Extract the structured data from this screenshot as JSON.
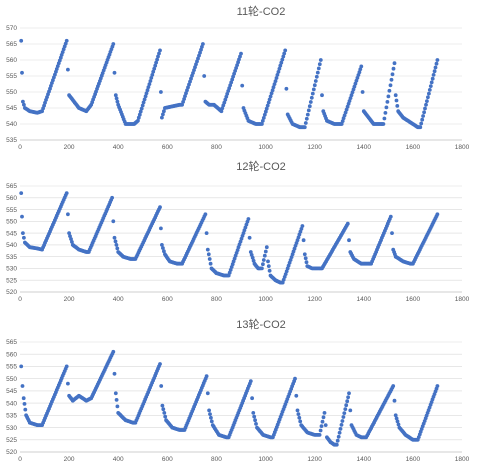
{
  "chart_data": [
    {
      "type": "scatter",
      "title": "11轮-CO2",
      "xlim": [
        0,
        1800
      ],
      "ylim": [
        535,
        570
      ],
      "x_ticks": [
        0,
        200,
        400,
        600,
        800,
        1000,
        1200,
        1400,
        1600,
        1800
      ],
      "y_ticks": [
        535,
        540,
        545,
        550,
        555,
        560,
        565,
        570
      ],
      "grid": true,
      "marker_color": "#4472c4",
      "series": [
        {
          "keypoints": [
            [
              5,
              566
            ],
            [
              8,
              556
            ],
            [
              12,
              547
            ],
            [
              20,
              545
            ],
            [
              40,
              544
            ],
            [
              70,
              543.5
            ],
            [
              90,
              544
            ],
            [
              190,
              566
            ],
            [
              195,
              557
            ],
            [
              200,
              549
            ],
            [
              215,
              547.5
            ],
            [
              240,
              545
            ],
            [
              270,
              544
            ],
            [
              290,
              546
            ],
            [
              380,
              565
            ],
            [
              385,
              556
            ],
            [
              390,
              549
            ],
            [
              400,
              546
            ],
            [
              430,
              540
            ],
            [
              465,
              540
            ],
            [
              480,
              541
            ],
            [
              570,
              563
            ],
            [
              574,
              550
            ],
            [
              578,
              542
            ],
            [
              590,
              545
            ],
            [
              620,
              545.5
            ],
            [
              650,
              546
            ],
            [
              660,
              546
            ],
            [
              745,
              565
            ],
            [
              750,
              555
            ],
            [
              755,
              547
            ],
            [
              770,
              546
            ],
            [
              790,
              546
            ],
            [
              805,
              545
            ],
            [
              820,
              544
            ],
            [
              900,
              562
            ],
            [
              905,
              552
            ],
            [
              910,
              545
            ],
            [
              930,
              541
            ],
            [
              960,
              540
            ],
            [
              980,
              540
            ],
            [
              985,
              540
            ],
            [
              1080,
              563
            ],
            [
              1085,
              551
            ],
            [
              1090,
              543
            ],
            [
              1110,
              540
            ],
            [
              1140,
              539
            ],
            [
              1160,
              539
            ],
            [
              1225,
              560
            ],
            [
              1230,
              549
            ],
            [
              1235,
              544
            ],
            [
              1250,
              541
            ],
            [
              1280,
              540
            ],
            [
              1300,
              540
            ],
            [
              1310,
              540
            ],
            [
              1390,
              558
            ],
            [
              1395,
              550
            ],
            [
              1400,
              544
            ],
            [
              1420,
              542
            ],
            [
              1440,
              540
            ],
            [
              1470,
              540
            ],
            [
              1480,
              540
            ],
            [
              1525,
              559
            ],
            [
              1530,
              549
            ],
            [
              1540,
              544
            ],
            [
              1560,
              542
            ],
            [
              1600,
              540
            ],
            [
              1620,
              539
            ],
            [
              1630,
              539
            ],
            [
              1700,
              560
            ]
          ]
        }
      ]
    },
    {
      "type": "scatter",
      "title": "12轮-CO2",
      "xlim": [
        0,
        1800
      ],
      "ylim": [
        520,
        565
      ],
      "x_ticks": [
        0,
        200,
        400,
        600,
        800,
        1000,
        1200,
        1400,
        1600,
        1800
      ],
      "y_ticks": [
        520,
        525,
        530,
        535,
        540,
        545,
        550,
        555,
        560,
        565
      ],
      "grid": true,
      "marker_color": "#4472c4",
      "series": [
        {
          "keypoints": [
            [
              5,
              562
            ],
            [
              8,
              552
            ],
            [
              12,
              545
            ],
            [
              20,
              541
            ],
            [
              40,
              539
            ],
            [
              70,
              538.5
            ],
            [
              90,
              538
            ],
            [
              190,
              562
            ],
            [
              195,
              553
            ],
            [
              200,
              545
            ],
            [
              215,
              540
            ],
            [
              240,
              538
            ],
            [
              270,
              537
            ],
            [
              280,
              537
            ],
            [
              375,
              560
            ],
            [
              380,
              550
            ],
            [
              385,
              543
            ],
            [
              400,
              537
            ],
            [
              420,
              535
            ],
            [
              450,
              534
            ],
            [
              470,
              534
            ],
            [
              570,
              556
            ],
            [
              574,
              547
            ],
            [
              578,
              540
            ],
            [
              590,
              536
            ],
            [
              610,
              533
            ],
            [
              640,
              532
            ],
            [
              660,
              532
            ],
            [
              755,
              553
            ],
            [
              760,
              545
            ],
            [
              765,
              538
            ],
            [
              780,
              530
            ],
            [
              800,
              528
            ],
            [
              830,
              527
            ],
            [
              850,
              527
            ],
            [
              930,
              551
            ],
            [
              935,
              543
            ],
            [
              940,
              537
            ],
            [
              955,
              532
            ],
            [
              970,
              530
            ],
            [
              980,
              530
            ],
            [
              985,
              530
            ],
            [
              1005,
              539
            ],
            [
              1010,
              533
            ],
            [
              1020,
              527
            ],
            [
              1040,
              525
            ],
            [
              1060,
              524
            ],
            [
              1070,
              524
            ],
            [
              1150,
              548
            ],
            [
              1155,
              542
            ],
            [
              1160,
              536
            ],
            [
              1170,
              531
            ],
            [
              1190,
              530
            ],
            [
              1220,
              530
            ],
            [
              1230,
              530
            ],
            [
              1335,
              549
            ],
            [
              1340,
              542
            ],
            [
              1345,
              537
            ],
            [
              1360,
              534
            ],
            [
              1390,
              532
            ],
            [
              1420,
              532
            ],
            [
              1430,
              532
            ],
            [
              1510,
              552
            ],
            [
              1515,
              545
            ],
            [
              1520,
              538
            ],
            [
              1530,
              535
            ],
            [
              1560,
              533
            ],
            [
              1590,
              532
            ],
            [
              1600,
              532
            ],
            [
              1700,
              553
            ]
          ]
        }
      ]
    },
    {
      "type": "scatter",
      "title": "13轮-CO2",
      "xlim": [
        0,
        1800
      ],
      "ylim": [
        520,
        565
      ],
      "x_ticks": [
        0,
        200,
        400,
        600,
        800,
        1000,
        1200,
        1400,
        1600,
        1800
      ],
      "y_ticks": [
        520,
        525,
        530,
        535,
        540,
        545,
        550,
        555,
        560,
        565
      ],
      "grid": true,
      "marker_color": "#4472c4",
      "series": [
        {
          "keypoints": [
            [
              5,
              555
            ],
            [
              10,
              547
            ],
            [
              15,
              542
            ],
            [
              25,
              535
            ],
            [
              40,
              532
            ],
            [
              70,
              531
            ],
            [
              90,
              531
            ],
            [
              190,
              555
            ],
            [
              195,
              548
            ],
            [
              200,
              543
            ],
            [
              215,
              541
            ],
            [
              240,
              543
            ],
            [
              270,
              541
            ],
            [
              290,
              542
            ],
            [
              380,
              561
            ],
            [
              385,
              552
            ],
            [
              390,
              544
            ],
            [
              400,
              536
            ],
            [
              430,
              533
            ],
            [
              460,
              532
            ],
            [
              470,
              532
            ],
            [
              570,
              556
            ],
            [
              575,
              547
            ],
            [
              580,
              539
            ],
            [
              595,
              533
            ],
            [
              620,
              530
            ],
            [
              650,
              529
            ],
            [
              670,
              529
            ],
            [
              760,
              551
            ],
            [
              765,
              544
            ],
            [
              770,
              537
            ],
            [
              785,
              531
            ],
            [
              810,
              527
            ],
            [
              840,
              526
            ],
            [
              850,
              526
            ],
            [
              940,
              549
            ],
            [
              945,
              542
            ],
            [
              950,
              536
            ],
            [
              965,
              530
            ],
            [
              990,
              527
            ],
            [
              1020,
              526
            ],
            [
              1030,
              526
            ],
            [
              1120,
              550
            ],
            [
              1125,
              543
            ],
            [
              1130,
              537
            ],
            [
              1145,
              531
            ],
            [
              1170,
              528
            ],
            [
              1200,
              527
            ],
            [
              1220,
              527
            ],
            [
              1240,
              536
            ],
            [
              1245,
              531
            ],
            [
              1250,
              526
            ],
            [
              1265,
              524
            ],
            [
              1280,
              523
            ],
            [
              1290,
              523
            ],
            [
              1340,
              544
            ],
            [
              1345,
              537
            ],
            [
              1350,
              531
            ],
            [
              1370,
              527
            ],
            [
              1390,
              526
            ],
            [
              1410,
              526
            ],
            [
              1520,
              547
            ],
            [
              1525,
              541
            ],
            [
              1530,
              535
            ],
            [
              1545,
              530
            ],
            [
              1570,
              527
            ],
            [
              1600,
              525
            ],
            [
              1620,
              525
            ],
            [
              1700,
              547
            ]
          ]
        }
      ]
    }
  ]
}
